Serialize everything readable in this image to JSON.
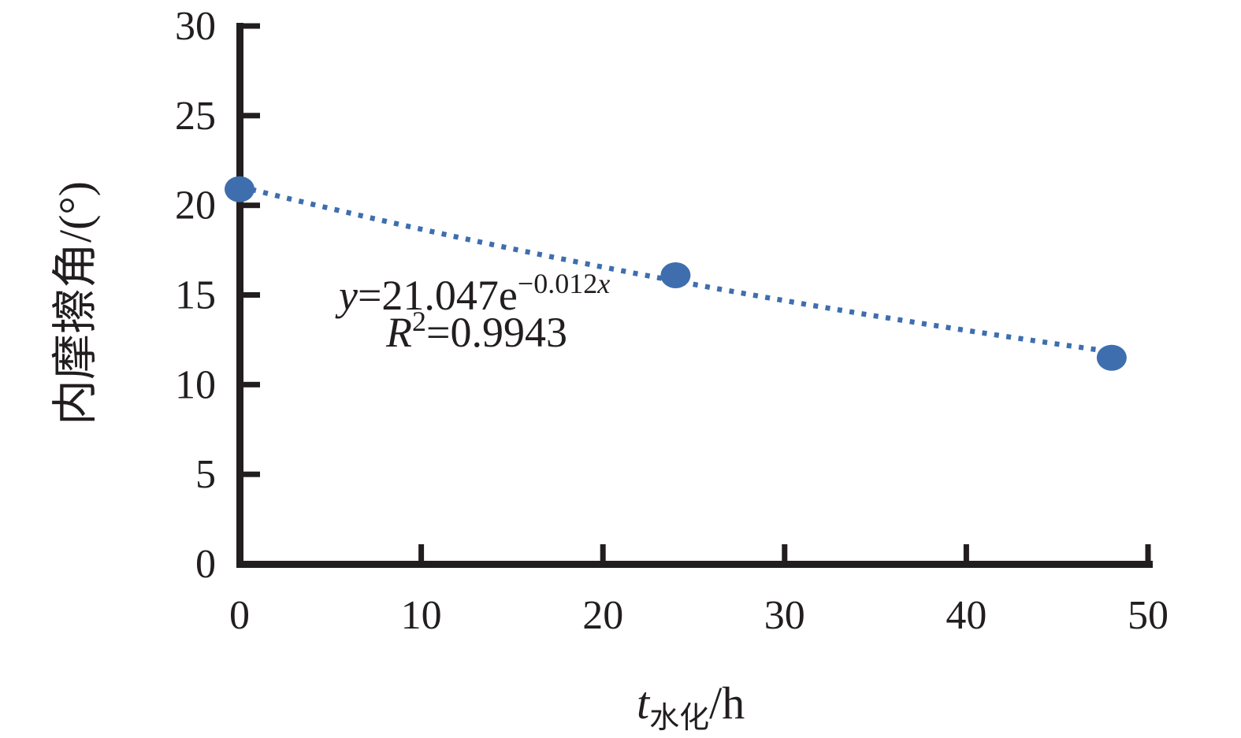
{
  "chart_data": {
    "type": "scatter",
    "title": "",
    "xlabel_parts": {
      "symbol": "t",
      "subscript": "水化",
      "unit": "/h"
    },
    "ylabel": "内摩擦角/(°)",
    "xlim": [
      0,
      50
    ],
    "ylim": [
      0,
      30
    ],
    "x_ticks": [
      0,
      10,
      20,
      30,
      40,
      50
    ],
    "y_ticks": [
      0,
      5,
      10,
      15,
      20,
      25,
      30
    ],
    "grid": false,
    "legend": null,
    "points": [
      {
        "x": 0,
        "y": 20.9
      },
      {
        "x": 24,
        "y": 16.1
      },
      {
        "x": 48,
        "y": 11.5
      }
    ],
    "trendline": {
      "type": "exponential",
      "a": 21.047,
      "b": -0.012,
      "x_start": 0,
      "x_end": 48,
      "style": "dotted"
    },
    "annotation": {
      "eq_var": "y",
      "eq_mid": "=21.047e",
      "eq_exp": "−0.012",
      "eq_exp_var": "x",
      "r2_symbol": "R",
      "r2_sup": "2",
      "r2_rest": "=0.9943"
    },
    "colors": {
      "series": "#3e6eae",
      "axis": "#221e1f"
    }
  }
}
